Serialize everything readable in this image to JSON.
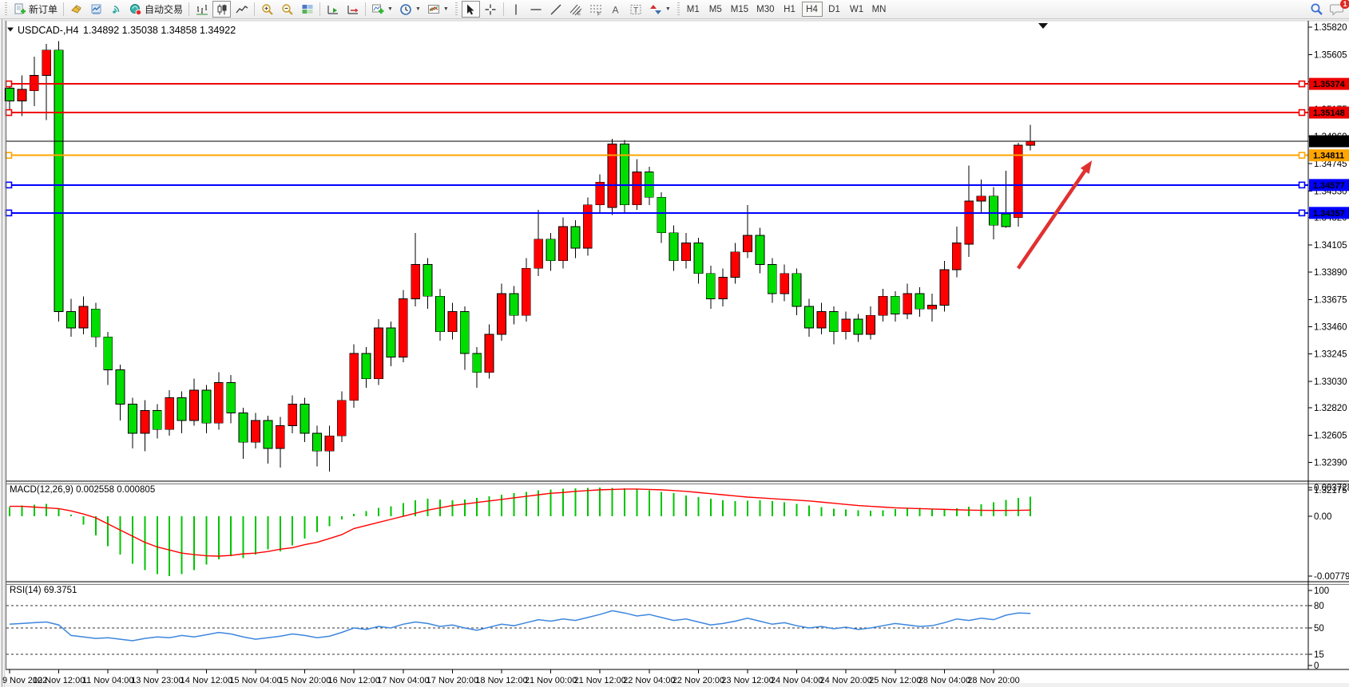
{
  "toolbar": {
    "new_order_label": "新订单",
    "autotrade_label": "自动交易",
    "timeframes": [
      "M1",
      "M5",
      "M15",
      "M30",
      "H1",
      "H4",
      "D1",
      "W1",
      "MN"
    ],
    "active_timeframe": "H4",
    "notification_badge": "1"
  },
  "chart": {
    "symbol_title": "USDCAD-,H4",
    "ohlc_title": "1.34892 1.35038 1.34858 1.34922"
  },
  "chart_data": {
    "type": "candlestick",
    "symbol": "USDCAD-",
    "period": "H4",
    "title": "USDCAD-,H4 1.34892 1.35038 1.34858 1.34922",
    "ohlc_display": {
      "open": "1.34892",
      "high": "1.35038",
      "low": "1.34858",
      "close": "1.34922"
    },
    "price_axis": {
      "min": 1.32243,
      "max": 1.35859,
      "tick_labels": [
        "1.35820",
        "1.35605",
        "1.35390",
        "1.35175",
        "1.34960",
        "1.34745",
        "1.34530",
        "1.34320",
        "1.34105",
        "1.33890",
        "1.33675",
        "1.33460",
        "1.33245",
        "1.33030",
        "1.32820",
        "1.32605",
        "1.32390",
        "1.32175"
      ]
    },
    "x_axis": {
      "label_every_n_candles": 4,
      "labels": [
        "9 Nov 2022",
        "10 Nov 12:00",
        "11 Nov 04:00",
        "13 Nov 23:00",
        "14 Nov 12:00",
        "15 Nov 04:00",
        "15 Nov 20:00",
        "16 Nov 12:00",
        "17 Nov 04:00",
        "17 Nov 20:00",
        "18 Nov 12:00",
        "21 Nov 00:00",
        "21 Nov 12:00",
        "22 Nov 04:00",
        "22 Nov 20:00",
        "23 Nov 12:00",
        "24 Nov 04:00",
        "24 Nov 20:00",
        "25 Nov 12:00",
        "28 Nov 04:00",
        "28 Nov 20:00"
      ]
    },
    "colors": {
      "bull_body": "#ff0000",
      "bear_body": "#00dd00",
      "wick": "#000000",
      "background": "#ffffff",
      "line_red": "#ee0000",
      "line_blue": "#0000ff",
      "line_orange": "#ffa500",
      "line_black": "#000000",
      "macd_histogram": "#00c400",
      "macd_signal": "#ff0000",
      "rsi_line": "#3d86dd",
      "arrow": "#e03131"
    },
    "candles": [
      [
        1.3536,
        1.3515,
        1.3534,
        1.3524,
        "d"
      ],
      [
        1.3544,
        1.3512,
        1.3533,
        1.3524,
        "u"
      ],
      [
        1.3559,
        1.352,
        1.3544,
        1.3532,
        "u"
      ],
      [
        1.3569,
        1.3509,
        1.3564,
        1.3544,
        "u"
      ],
      [
        1.3571,
        1.335,
        1.3564,
        1.3358,
        "d"
      ],
      [
        1.3368,
        1.3338,
        1.3358,
        1.3345,
        "d"
      ],
      [
        1.337,
        1.334,
        1.3362,
        1.3345,
        "u"
      ],
      [
        1.3365,
        1.333,
        1.336,
        1.3338,
        "d"
      ],
      [
        1.3342,
        1.33,
        1.3338,
        1.3312,
        "d"
      ],
      [
        1.3316,
        1.3272,
        1.3312,
        1.3285,
        "d"
      ],
      [
        1.329,
        1.325,
        1.3285,
        1.3262,
        "d"
      ],
      [
        1.3288,
        1.3248,
        1.328,
        1.3262,
        "u"
      ],
      [
        1.3285,
        1.3258,
        1.328,
        1.3265,
        "d"
      ],
      [
        1.3296,
        1.326,
        1.329,
        1.3265,
        "u"
      ],
      [
        1.3295,
        1.3262,
        1.329,
        1.3272,
        "d"
      ],
      [
        1.3305,
        1.3268,
        1.3296,
        1.3272,
        "u"
      ],
      [
        1.33,
        1.3262,
        1.3296,
        1.327,
        "d"
      ],
      [
        1.331,
        1.3265,
        1.3302,
        1.327,
        "u"
      ],
      [
        1.3308,
        1.327,
        1.3302,
        1.3278,
        "d"
      ],
      [
        1.3282,
        1.3242,
        1.3278,
        1.3255,
        "d"
      ],
      [
        1.3278,
        1.325,
        1.3272,
        1.3255,
        "u"
      ],
      [
        1.3276,
        1.3238,
        1.3272,
        1.325,
        "d"
      ],
      [
        1.3275,
        1.3235,
        1.3268,
        1.325,
        "u"
      ],
      [
        1.3292,
        1.3262,
        1.3285,
        1.3268,
        "u"
      ],
      [
        1.329,
        1.3255,
        1.3285,
        1.3262,
        "d"
      ],
      [
        1.3268,
        1.3236,
        1.3262,
        1.3248,
        "d"
      ],
      [
        1.3268,
        1.3232,
        1.326,
        1.3248,
        "u"
      ],
      [
        1.3295,
        1.3255,
        1.3288,
        1.326,
        "u"
      ],
      [
        1.3332,
        1.3282,
        1.3325,
        1.3288,
        "u"
      ],
      [
        1.333,
        1.3298,
        1.3325,
        1.3305,
        "d"
      ],
      [
        1.3352,
        1.33,
        1.3345,
        1.3305,
        "u"
      ],
      [
        1.335,
        1.3315,
        1.3345,
        1.3322,
        "d"
      ],
      [
        1.3375,
        1.3318,
        1.3368,
        1.3322,
        "u"
      ],
      [
        1.342,
        1.3362,
        1.3395,
        1.3368,
        "u"
      ],
      [
        1.34,
        1.336,
        1.3395,
        1.337,
        "d"
      ],
      [
        1.3376,
        1.3335,
        1.337,
        1.3342,
        "d"
      ],
      [
        1.3365,
        1.3336,
        1.3358,
        1.3342,
        "u"
      ],
      [
        1.3362,
        1.3312,
        1.3358,
        1.3325,
        "d"
      ],
      [
        1.333,
        1.3298,
        1.3325,
        1.331,
        "d"
      ],
      [
        1.3348,
        1.3305,
        1.334,
        1.331,
        "u"
      ],
      [
        1.338,
        1.3335,
        1.3372,
        1.334,
        "u"
      ],
      [
        1.3378,
        1.3348,
        1.3372,
        1.3355,
        "d"
      ],
      [
        1.34,
        1.335,
        1.3392,
        1.3355,
        "u"
      ],
      [
        1.3438,
        1.3386,
        1.3415,
        1.3392,
        "u"
      ],
      [
        1.342,
        1.339,
        1.3415,
        1.3398,
        "d"
      ],
      [
        1.3432,
        1.3392,
        1.3425,
        1.3398,
        "u"
      ],
      [
        1.343,
        1.34,
        1.3425,
        1.3408,
        "d"
      ],
      [
        1.3448,
        1.3402,
        1.3442,
        1.3408,
        "u"
      ],
      [
        1.3466,
        1.3436,
        1.346,
        1.3442,
        "u"
      ],
      [
        1.3494,
        1.3434,
        1.349,
        1.344,
        "u"
      ],
      [
        1.3493,
        1.3436,
        1.349,
        1.3442,
        "d"
      ],
      [
        1.3478,
        1.3438,
        1.3468,
        1.3442,
        "u"
      ],
      [
        1.3472,
        1.3442,
        1.3468,
        1.3448,
        "d"
      ],
      [
        1.3452,
        1.3412,
        1.3448,
        1.342,
        "d"
      ],
      [
        1.3426,
        1.339,
        1.342,
        1.3398,
        "d"
      ],
      [
        1.342,
        1.3392,
        1.3412,
        1.3398,
        "u"
      ],
      [
        1.3416,
        1.338,
        1.3412,
        1.3388,
        "d"
      ],
      [
        1.3394,
        1.336,
        1.3388,
        1.3368,
        "d"
      ],
      [
        1.3392,
        1.3362,
        1.3385,
        1.3368,
        "u"
      ],
      [
        1.3412,
        1.338,
        1.3405,
        1.3385,
        "u"
      ],
      [
        1.3442,
        1.34,
        1.3418,
        1.3405,
        "u"
      ],
      [
        1.3424,
        1.3388,
        1.3418,
        1.3395,
        "d"
      ],
      [
        1.34,
        1.3365,
        1.3395,
        1.3372,
        "d"
      ],
      [
        1.3395,
        1.3366,
        1.3388,
        1.3372,
        "u"
      ],
      [
        1.3392,
        1.3355,
        1.3388,
        1.3362,
        "d"
      ],
      [
        1.3368,
        1.3338,
        1.3362,
        1.3345,
        "d"
      ],
      [
        1.3365,
        1.334,
        1.3358,
        1.3345,
        "u"
      ],
      [
        1.3362,
        1.3332,
        1.3358,
        1.3342,
        "d"
      ],
      [
        1.3358,
        1.3336,
        1.3352,
        1.3342,
        "u"
      ],
      [
        1.3356,
        1.3334,
        1.3352,
        1.334,
        "d"
      ],
      [
        1.3362,
        1.3336,
        1.3355,
        1.334,
        "u"
      ],
      [
        1.3376,
        1.335,
        1.337,
        1.3355,
        "u"
      ],
      [
        1.3374,
        1.335,
        1.337,
        1.3356,
        "d"
      ],
      [
        1.338,
        1.3352,
        1.3372,
        1.3356,
        "u"
      ],
      [
        1.3377,
        1.3354,
        1.3372,
        1.336,
        "d"
      ],
      [
        1.3372,
        1.335,
        1.3363,
        1.336,
        "u"
      ],
      [
        1.3398,
        1.3358,
        1.3391,
        1.3363,
        "u"
      ],
      [
        1.3425,
        1.3385,
        1.3412,
        1.3391,
        "u"
      ],
      [
        1.3473,
        1.3401,
        1.3445,
        1.3411,
        "u"
      ],
      [
        1.3462,
        1.3435,
        1.3449,
        1.3445,
        "u"
      ],
      [
        1.3456,
        1.3415,
        1.3449,
        1.3426,
        "d"
      ],
      [
        1.3469,
        1.3424,
        1.3435,
        1.3425,
        "d"
      ],
      [
        1.3491,
        1.3425,
        1.3489,
        1.3432,
        "u"
      ],
      [
        1.3505,
        1.3485,
        1.3492,
        1.3489,
        "u"
      ]
    ],
    "hlines": [
      {
        "price": 1.35374,
        "label": "1.35374",
        "color": "#ee0000",
        "width": 2,
        "handles": true
      },
      {
        "price": 1.35148,
        "label": "1.35148",
        "color": "#ee0000",
        "width": 2,
        "handles": true
      },
      {
        "price": 1.34922,
        "label": "1.34922",
        "color": "#000000",
        "width": 1,
        "handles": false
      },
      {
        "price": 1.34811,
        "label": "1.34811",
        "color": "#ffa500",
        "width": 2,
        "handles": true
      },
      {
        "price": 1.34577,
        "label": "1.34577",
        "color": "#0000ff",
        "width": 2,
        "handles": true
      },
      {
        "price": 1.34357,
        "label": "1.34357",
        "color": "#0000ff",
        "width": 2,
        "handles": true
      }
    ],
    "trend_arrow": {
      "from_index": 82,
      "from_price": 1.3392,
      "to_index": 88,
      "to_price": 1.3477,
      "color": "#e03131"
    },
    "indicators": [
      {
        "name": "MACD",
        "label": "MACD(12,26,9) 0.002558 0.000805",
        "params": "12,26,9",
        "main_value": "0.002558",
        "signal_value": "0.000805",
        "axis_tick_labels": [
          "0.003728",
          "0.00",
          "-0.007792"
        ],
        "range": [
          -0.00853,
          0.00427
        ],
        "histogram": [
          0.0012,
          0.0014,
          0.0015,
          0.0016,
          0.001,
          0.0002,
          -0.0011,
          -0.0025,
          -0.0039,
          -0.005,
          -0.0062,
          -0.007,
          -0.00755,
          -0.00779,
          -0.00755,
          -0.007,
          -0.0063,
          -0.0056,
          -0.0052,
          -0.00545,
          -0.005,
          -0.0043,
          -0.0046,
          -0.0038,
          -0.0029,
          -0.0021,
          -0.0013,
          -0.0004,
          0.0003,
          0.0007,
          0.0011,
          0.0013,
          0.0017,
          0.0021,
          0.0023,
          0.0022,
          0.0021,
          0.0022,
          0.0024,
          0.0026,
          0.0028,
          0.003,
          0.0032,
          0.0034,
          0.0035,
          0.0036,
          0.00365,
          0.0037,
          0.003728,
          0.0037,
          0.00365,
          0.00355,
          0.0034,
          0.0032,
          0.003,
          0.0027,
          0.0025,
          0.0023,
          0.0021,
          0.002,
          0.00205,
          0.0021,
          0.002,
          0.0018,
          0.0016,
          0.0014,
          0.0012,
          0.001,
          0.0009,
          0.0008,
          0.00075,
          0.0008,
          0.00095,
          0.00105,
          0.0011,
          0.001,
          0.00095,
          0.00105,
          0.00125,
          0.00155,
          0.00185,
          0.00215,
          0.0024,
          0.002558
        ],
        "signal": [
          0.0013,
          0.0013,
          0.0012,
          0.0011,
          0.001,
          0.0007,
          0.0003,
          -0.0002,
          -0.001,
          -0.0018,
          -0.0026,
          -0.0034,
          -0.004,
          -0.0044,
          -0.0048,
          -0.005,
          -0.00515,
          -0.0052,
          -0.0051,
          -0.0049,
          -0.0048,
          -0.0046,
          -0.0043,
          -0.0041,
          -0.0037,
          -0.0034,
          -0.0029,
          -0.0024,
          -0.0016,
          -0.0012,
          -0.0008,
          -0.0004,
          0.0,
          0.0004,
          0.0008,
          0.0011,
          0.0014,
          0.0016,
          0.0018,
          0.002,
          0.0022,
          0.0024,
          0.0026,
          0.0028,
          0.003,
          0.0031,
          0.00325,
          0.00335,
          0.00345,
          0.0035,
          0.00355,
          0.00355,
          0.0035,
          0.00345,
          0.00335,
          0.00325,
          0.0031,
          0.00295,
          0.0028,
          0.00265,
          0.0025,
          0.0024,
          0.0023,
          0.0022,
          0.0021,
          0.002,
          0.00185,
          0.0017,
          0.00155,
          0.0014,
          0.0013,
          0.0012,
          0.0011,
          0.00105,
          0.001,
          0.00095,
          0.0009,
          0.00085,
          0.0008,
          0.00078,
          0.00076,
          0.00076,
          0.00078,
          0.000805
        ]
      },
      {
        "name": "RSI",
        "label": "RSI(14) 69.3751",
        "params": "14",
        "value": "69.3751",
        "levels": [
          80,
          50,
          15
        ],
        "axis_tick_labels": [
          "100",
          "80",
          "50",
          "15",
          "0"
        ],
        "range": [
          0,
          100
        ],
        "values": [
          55,
          56,
          57,
          58,
          54,
          40,
          38,
          36,
          37,
          35,
          33,
          36,
          38,
          37,
          40,
          38,
          41,
          44,
          42,
          38,
          35,
          37,
          39,
          42,
          40,
          37,
          39,
          44,
          50,
          48,
          52,
          50,
          55,
          58,
          56,
          52,
          54,
          50,
          47,
          51,
          55,
          53,
          57,
          61,
          59,
          62,
          60,
          64,
          68,
          73,
          70,
          66,
          68,
          64,
          60,
          62,
          58,
          54,
          56,
          59,
          63,
          59,
          55,
          57,
          53,
          50,
          52,
          49,
          51,
          48,
          50,
          53,
          56,
          54,
          52,
          53,
          57,
          62,
          60,
          63,
          61,
          67,
          70,
          69.4
        ]
      }
    ]
  }
}
